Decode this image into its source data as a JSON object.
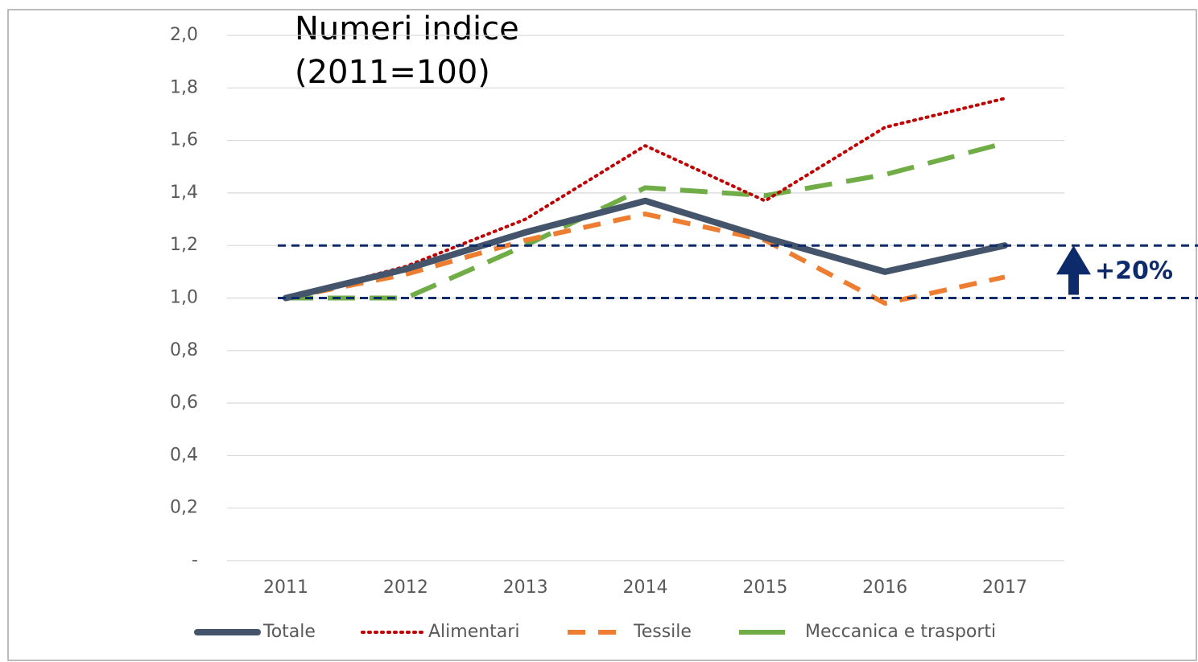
{
  "chart_data": {
    "type": "line",
    "title": "Numeri indice",
    "subtitle": "(2011=100)",
    "categories": [
      "2011",
      "2012",
      "2013",
      "2014",
      "2015",
      "2016",
      "2017"
    ],
    "series": [
      {
        "name": "Totale",
        "color": "#44546a",
        "style": "solid",
        "values": [
          1.0,
          1.11,
          1.25,
          1.37,
          1.23,
          1.1,
          1.2
        ]
      },
      {
        "name": "Alimentari",
        "color": "#c00000",
        "style": "dotted",
        "values": [
          1.0,
          1.12,
          1.3,
          1.58,
          1.37,
          1.65,
          1.76
        ]
      },
      {
        "name": "Tessile",
        "color": "#ed7d31",
        "style": "dashed",
        "values": [
          1.0,
          1.09,
          1.22,
          1.32,
          1.22,
          0.98,
          1.08
        ]
      },
      {
        "name": "Meccanica e trasporti",
        "color": "#70ad47",
        "style": "longdash",
        "values": [
          1.0,
          1.0,
          1.2,
          1.42,
          1.39,
          1.47,
          1.59
        ]
      }
    ],
    "ylim": [
      0,
      2.0
    ],
    "yticks": [
      {
        "value": 0,
        "label": "-"
      },
      {
        "value": 0.2,
        "label": "0,2"
      },
      {
        "value": 0.4,
        "label": "0,4"
      },
      {
        "value": 0.6,
        "label": "0,6"
      },
      {
        "value": 0.8,
        "label": "0,8"
      },
      {
        "value": 1.0,
        "label": "1,0"
      },
      {
        "value": 1.2,
        "label": "1,2"
      },
      {
        "value": 1.4,
        "label": "1,4"
      },
      {
        "value": 1.6,
        "label": "1,6"
      },
      {
        "value": 1.8,
        "label": "1,8"
      },
      {
        "value": 2.0,
        "label": "2,0"
      }
    ],
    "grid": true,
    "legend": "bottom",
    "annotation": {
      "text": "+20%",
      "color": "#0d2a6b",
      "lines": [
        1.2,
        1.0
      ]
    }
  }
}
